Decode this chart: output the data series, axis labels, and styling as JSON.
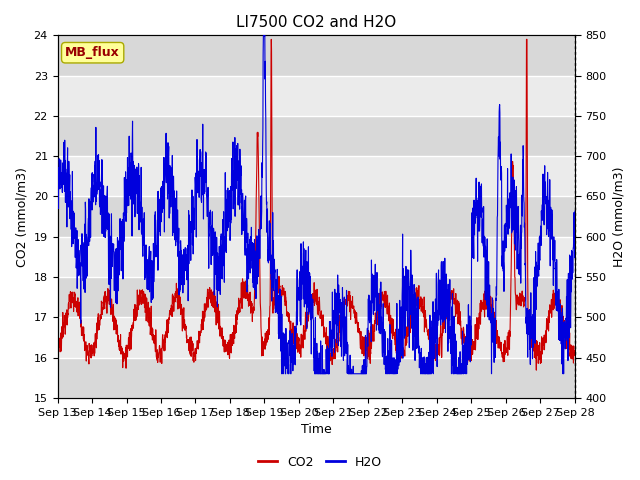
{
  "title": "LI7500 CO2 and H2O",
  "xlabel": "Time",
  "ylabel_left": "CO2 (mmol/m3)",
  "ylabel_right": "H2O (mmol/m3)",
  "co2_ylim": [
    15.0,
    24.0
  ],
  "h2o_ylim": [
    400,
    850
  ],
  "co2_yticks": [
    15.0,
    16.0,
    17.0,
    18.0,
    19.0,
    20.0,
    21.0,
    22.0,
    23.0,
    24.0
  ],
  "h2o_yticks": [
    400,
    450,
    500,
    550,
    600,
    650,
    700,
    750,
    800,
    850
  ],
  "co2_color": "#CC0000",
  "h2o_color": "#0000DD",
  "background_color": "#ffffff",
  "plot_bg_light": "#ebebeb",
  "plot_bg_dark": "#d8d8d8",
  "grid_color": "#ffffff",
  "annotation_text": "MB_flux",
  "annotation_bg": "#FFFF99",
  "annotation_border": "#AAAA00",
  "annotation_text_color": "#990000",
  "x_tick_labels": [
    "Sep 13",
    "Sep 14",
    "Sep 15",
    "Sep 16",
    "Sep 17",
    "Sep 18",
    "Sep 19",
    "Sep 20",
    "Sep 21",
    "Sep 22",
    "Sep 23",
    "Sep 24",
    "Sep 25",
    "Sep 26",
    "Sep 27",
    "Sep 28"
  ],
  "legend_co2": "CO2",
  "legend_h2o": "H2O",
  "title_fontsize": 11,
  "axis_fontsize": 9,
  "tick_fontsize": 8,
  "legend_fontsize": 9
}
